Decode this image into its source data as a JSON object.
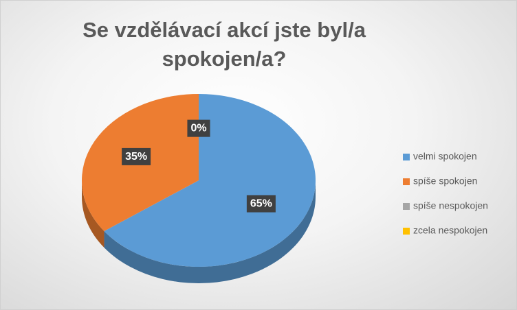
{
  "chart_data": {
    "type": "pie3d",
    "title": "Se vzdělávací akcí jste byl/a spokojen/a?",
    "categories": [
      "velmi spokojen",
      "spíše spokojen",
      "spíše nespokojen",
      "zcela nespokojen"
    ],
    "values": [
      65,
      35,
      0,
      0
    ],
    "value_labels": [
      "65%",
      "35%",
      "0%",
      null
    ],
    "colors": [
      "#5b9bd5",
      "#ed7d31",
      "#a5a5a5",
      "#ffc000"
    ],
    "legend": "right"
  }
}
